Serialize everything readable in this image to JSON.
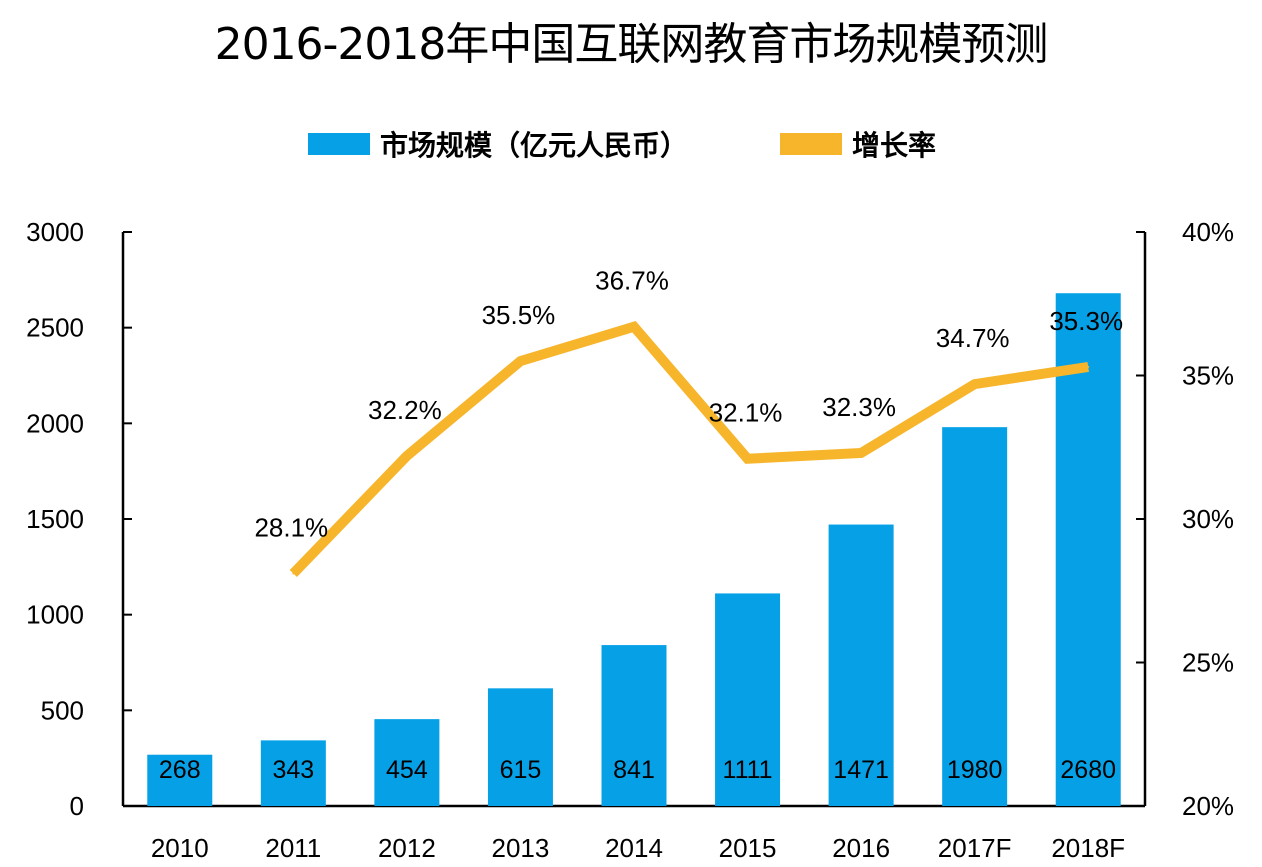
{
  "title": "2016-2018年中国互联网教育市场规模预测",
  "legend": {
    "bar_label": "市场规模（亿元人民币）",
    "line_label": "增长率"
  },
  "colors": {
    "bar": "#05A0E6",
    "line": "#F7B52C",
    "axis": "#000000"
  },
  "chart_data": {
    "type": "bar",
    "categories": [
      "2010",
      "2011",
      "2012",
      "2013",
      "2014",
      "2015",
      "2016",
      "2017F",
      "2018F"
    ],
    "series": [
      {
        "name": "市场规模（亿元人民币）",
        "type": "bar",
        "axis": "left",
        "values": [
          268,
          343,
          454,
          615,
          841,
          1111,
          1471,
          1980,
          2680
        ],
        "labels": [
          "268",
          "343",
          "454",
          "615",
          "841",
          "1111",
          "1471",
          "1980",
          "2680"
        ]
      },
      {
        "name": "增长率",
        "type": "line",
        "axis": "right",
        "values": [
          null,
          28.1,
          32.2,
          35.5,
          36.7,
          32.1,
          32.3,
          34.7,
          35.3
        ],
        "labels": [
          "",
          "28.1%",
          "32.2%",
          "35.5%",
          "36.7%",
          "32.1%",
          "32.3%",
          "34.7%",
          "35.3%"
        ]
      }
    ],
    "y_left": {
      "min": 0,
      "max": 3000,
      "ticks": [
        "0",
        "500",
        "1000",
        "1500",
        "2000",
        "2500",
        "3000"
      ]
    },
    "y_right": {
      "min": 20,
      "max": 40,
      "ticks": [
        "20%",
        "25%",
        "30%",
        "35%",
        "40%"
      ]
    },
    "grid": false,
    "legend_position": "top-center"
  }
}
